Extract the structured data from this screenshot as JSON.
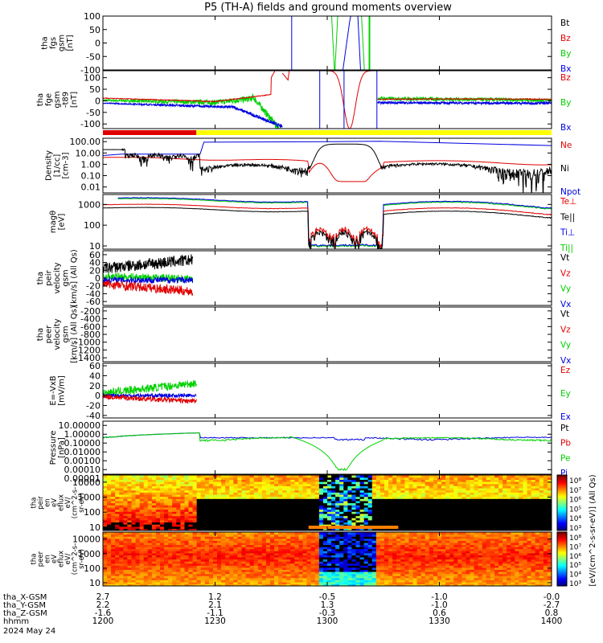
{
  "title": "P5 (TH-A) fields and ground moments overview",
  "colors": {
    "black": "#000000",
    "red": "#e00000",
    "green": "#00d000",
    "blue": "#0000e0",
    "yellow": "#ffff00"
  },
  "chart_data": [
    {
      "type": "line",
      "id": "fgs",
      "ylabel": [
        "tha",
        "fgs",
        "gsm",
        "[nT]"
      ],
      "ylim": [
        -100,
        100
      ],
      "ticks": [
        "100",
        "50",
        "0",
        "-50",
        "-100"
      ],
      "tick_values": [
        100,
        50,
        0,
        -50,
        -100
      ],
      "legend": [
        {
          "name": "Bt",
          "color": "black"
        },
        {
          "name": "Bz",
          "color": "red"
        },
        {
          "name": "By",
          "color": "green"
        },
        {
          "name": "Bx",
          "color": "blue"
        }
      ]
    },
    {
      "type": "line",
      "id": "fge",
      "ylabel": [
        "tha",
        "fge",
        "gsm",
        "-t89",
        "[nT]"
      ],
      "ylim": [
        -120,
        130
      ],
      "ticks": [
        "100",
        "50",
        "0",
        "-50",
        "-100"
      ],
      "tick_values": [
        100,
        50,
        0,
        -50,
        -100
      ],
      "legend": [
        {
          "name": "Bz",
          "color": "red"
        },
        {
          "name": "By",
          "color": "green"
        },
        {
          "name": "Bx",
          "color": "blue"
        }
      ]
    },
    {
      "type": "line",
      "id": "density",
      "scale": "log",
      "ylabel": [
        "Density",
        "[1/cc]",
        "[cm-3]"
      ],
      "ylim": [
        0.003,
        200
      ],
      "ticks": [
        "100.00",
        "10.00",
        "1.00",
        "0.10",
        "0.01"
      ],
      "tick_values": [
        100,
        10,
        1,
        0.1,
        0.01
      ],
      "legend": [
        {
          "name": "Ne",
          "color": "red"
        },
        {
          "name": "Ni",
          "color": "black"
        },
        {
          "name": "Npot",
          "color": "blue"
        }
      ]
    },
    {
      "type": "line",
      "id": "temperature",
      "scale": "log",
      "ylabel": [
        "magθ",
        "[eV]"
      ],
      "ylim": [
        7,
        3000
      ],
      "ticks": [
        "1000",
        "100",
        "10"
      ],
      "tick_values": [
        1000,
        100,
        10
      ],
      "legend": [
        {
          "name": "Te⊥",
          "color": "red"
        },
        {
          "name": "Te||",
          "color": "black"
        },
        {
          "name": "Ti⊥",
          "color": "blue"
        },
        {
          "name": "Ti||",
          "color": "green"
        }
      ]
    },
    {
      "type": "line",
      "id": "peir_velocity",
      "ylabel": [
        "tha",
        "peir",
        "velocity",
        "gsm",
        "[km/s] (All Qs)"
      ],
      "ylim": [
        -70,
        70
      ],
      "ticks": [
        "60",
        "40",
        "20",
        "0",
        "-20",
        "-40",
        "-60"
      ],
      "tick_values": [
        60,
        40,
        20,
        0,
        -20,
        -40,
        -60
      ],
      "legend": [
        {
          "name": "Vt",
          "color": "black"
        },
        {
          "name": "Vz",
          "color": "red"
        },
        {
          "name": "Vy",
          "color": "green"
        },
        {
          "name": "Vx",
          "color": "blue"
        }
      ]
    },
    {
      "type": "line",
      "id": "peer_velocity",
      "ylabel": [
        "tha",
        "peer",
        "velocity",
        "gsm",
        "[km/s] (All Qs)"
      ],
      "ylim": [
        -1500,
        -100
      ],
      "ticks": [
        "-200",
        "-400",
        "-600",
        "-800",
        "-1000",
        "-1200",
        "-1400"
      ],
      "tick_values": [
        -200,
        -400,
        -600,
        -800,
        -1000,
        -1200,
        -1400
      ],
      "legend": [
        {
          "name": "Vt",
          "color": "black"
        },
        {
          "name": "Vz",
          "color": "red"
        },
        {
          "name": "Vy",
          "color": "green"
        },
        {
          "name": "Vx",
          "color": "blue"
        }
      ]
    },
    {
      "type": "line",
      "id": "efield",
      "ylabel": [
        "E=-VxB",
        "[mV/m]"
      ],
      "ylim": [
        -45,
        65
      ],
      "ticks": [
        "60",
        "40",
        "20",
        "0",
        "-20",
        "-40"
      ],
      "tick_values": [
        60,
        40,
        20,
        0,
        -20,
        -40
      ],
      "legend": [
        {
          "name": "Ez",
          "color": "red"
        },
        {
          "name": "Ey",
          "color": "green"
        },
        {
          "name": "Ex",
          "color": "blue"
        }
      ]
    },
    {
      "type": "line",
      "id": "pressure",
      "scale": "log",
      "ylabel": [
        "Pressure",
        "[nPa]"
      ],
      "ylim": [
        3e-05,
        30
      ],
      "ticks": [
        "10.00000",
        "1.00000",
        "0.10000",
        "0.01000",
        "0.00100",
        "0.00010",
        "0.00001"
      ],
      "tick_values": [
        10,
        1,
        0.1,
        0.01,
        0.001,
        0.0001,
        1e-05
      ],
      "legend": [
        {
          "name": "Pt",
          "color": "black"
        },
        {
          "name": "Pb",
          "color": "red"
        },
        {
          "name": "Pe",
          "color": "green"
        },
        {
          "name": "Pi",
          "color": "blue"
        }
      ]
    },
    {
      "type": "heatmap",
      "id": "peir_spec",
      "scale": "log",
      "ylabel": [
        "tha",
        "peir",
        "en",
        "eV",
        "eflux",
        "eV/",
        "(cm^2-s-",
        "sr-eV)"
      ],
      "ylim": [
        6,
        30000
      ],
      "ticks": [
        "10000",
        "1000",
        "100",
        "10"
      ],
      "tick_values": [
        10000,
        1000,
        100,
        10
      ],
      "colorbar_ticks": [
        "10⁸",
        "10⁷",
        "10⁶",
        "10⁵",
        "10⁴",
        "10³"
      ]
    },
    {
      "type": "heatmap",
      "id": "peer_spec",
      "scale": "log",
      "ylabel": [
        "tha",
        "peer",
        "en",
        "eV",
        "eflux",
        "eV/",
        "(cm^2-s-",
        "sr-eV)"
      ],
      "ylim": [
        6,
        30000
      ],
      "ticks": [
        "10000",
        "1000",
        "100",
        "10"
      ],
      "tick_values": [
        10000,
        1000,
        100,
        10
      ],
      "colorbar_ticks": [
        "10⁸",
        "10⁷",
        "10⁶",
        "10⁵",
        "10⁴",
        "10³"
      ]
    }
  ],
  "colorbar_label": "[eV/(cm^2-s-sr-eV)] (All Qs)",
  "xaxis": {
    "rows": [
      {
        "label": "tha_X-GSM",
        "values": [
          "2.7",
          "1.2",
          "-0.5",
          "-1.0",
          "-0.0"
        ]
      },
      {
        "label": "tha_Y-GSM",
        "values": [
          "2.2",
          "2.1",
          "1.3",
          "-1.0",
          "-2.7"
        ]
      },
      {
        "label": "tha_Z-GSM",
        "values": [
          "-1.6",
          "-1.1",
          "-0.3",
          "0.6",
          "0.8"
        ]
      },
      {
        "label": "hhmm",
        "values": [
          "1200",
          "1230",
          "1300",
          "1330",
          "1400"
        ]
      }
    ],
    "date": "2024 May 24",
    "time_min": 0,
    "time_max": 120,
    "tick_times": [
      0,
      30,
      60,
      90,
      120
    ]
  }
}
